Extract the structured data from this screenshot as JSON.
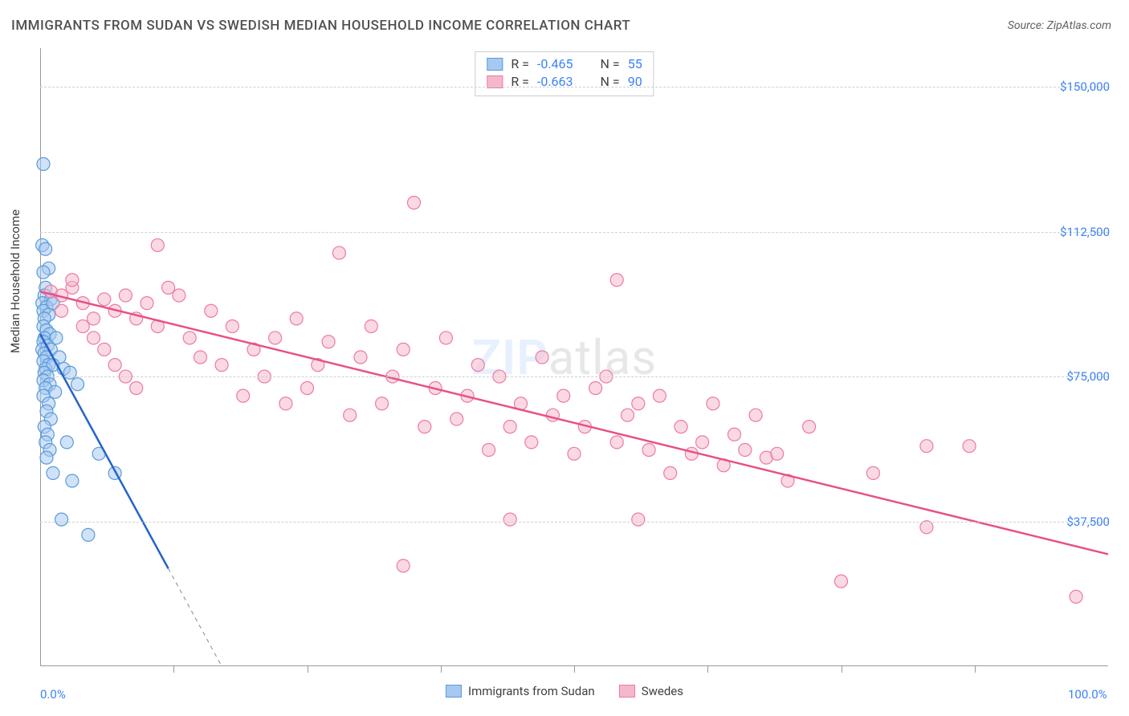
{
  "title": "IMMIGRANTS FROM SUDAN VS SWEDISH MEDIAN HOUSEHOLD INCOME CORRELATION CHART",
  "source_label": "Source:",
  "source_value": "ZipAtlas.com",
  "watermark_zip": "ZIP",
  "watermark_atlas": "atlas",
  "y_axis_label": "Median Household Income",
  "chart": {
    "type": "scatter",
    "background_color": "#ffffff",
    "grid_color": "#d0d0d0",
    "axis_color": "#999999",
    "xlim": [
      0,
      100
    ],
    "ylim": [
      0,
      160000
    ],
    "x_tick_labels": {
      "0": "0.0%",
      "100": "100.0%"
    },
    "x_minor_ticks": [
      12.5,
      25,
      37.5,
      50,
      62.5,
      75,
      87.5
    ],
    "y_ticks": [
      37500,
      75000,
      112500,
      150000
    ],
    "y_tick_labels": {
      "37500": "$37,500",
      "75000": "$75,000",
      "112500": "$112,500",
      "150000": "$150,000"
    },
    "tick_label_color": "#3b82f6",
    "tick_label_fontsize": 15,
    "marker_radius": 8,
    "marker_fill_opacity": 0.18,
    "marker_stroke_width": 1.2,
    "line_width": 2.5,
    "series": [
      {
        "name": "Immigrants from Sudan",
        "color_fill": "#a7c8f2",
        "color_stroke": "#5a9bd8",
        "line_color": "#2563cb",
        "R": "-0.465",
        "N": "55",
        "trend": {
          "x1": 0,
          "y1": 86000,
          "x2": 17,
          "y2": 0,
          "dash_after_x": 12
        },
        "points": [
          [
            0.3,
            130000
          ],
          [
            0.2,
            109000
          ],
          [
            0.5,
            108000
          ],
          [
            0.8,
            103000
          ],
          [
            0.3,
            102000
          ],
          [
            0.5,
            98000
          ],
          [
            0.4,
            96000
          ],
          [
            1.0,
            95000
          ],
          [
            0.2,
            94000
          ],
          [
            0.6,
            93000
          ],
          [
            0.3,
            92000
          ],
          [
            0.8,
            91000
          ],
          [
            0.4,
            90000
          ],
          [
            1.2,
            94000
          ],
          [
            0.3,
            88000
          ],
          [
            0.6,
            87000
          ],
          [
            0.9,
            86000
          ],
          [
            0.4,
            85000
          ],
          [
            1.5,
            85000
          ],
          [
            0.3,
            84000
          ],
          [
            0.7,
            83000
          ],
          [
            0.2,
            82000
          ],
          [
            1.0,
            82000
          ],
          [
            0.4,
            81000
          ],
          [
            0.6,
            80000
          ],
          [
            1.8,
            80000
          ],
          [
            0.3,
            79000
          ],
          [
            0.8,
            78000
          ],
          [
            0.5,
            77000
          ],
          [
            1.2,
            78000
          ],
          [
            2.2,
            77000
          ],
          [
            0.4,
            76000
          ],
          [
            0.7,
            75000
          ],
          [
            2.8,
            76000
          ],
          [
            0.3,
            74000
          ],
          [
            0.9,
            73000
          ],
          [
            3.5,
            73000
          ],
          [
            0.5,
            72000
          ],
          [
            1.4,
            71000
          ],
          [
            0.3,
            70000
          ],
          [
            0.8,
            68000
          ],
          [
            0.6,
            66000
          ],
          [
            1.0,
            64000
          ],
          [
            0.4,
            62000
          ],
          [
            0.7,
            60000
          ],
          [
            0.5,
            58000
          ],
          [
            0.9,
            56000
          ],
          [
            2.5,
            58000
          ],
          [
            0.6,
            54000
          ],
          [
            1.2,
            50000
          ],
          [
            3.0,
            48000
          ],
          [
            5.5,
            55000
          ],
          [
            7.0,
            50000
          ],
          [
            4.5,
            34000
          ],
          [
            2.0,
            38000
          ]
        ]
      },
      {
        "name": "Swedes",
        "color_fill": "#f5b8cb",
        "color_stroke": "#ec7ba3",
        "line_color": "#e84f87",
        "R": "-0.663",
        "N": "90",
        "trend": {
          "x1": 0,
          "y1": 97000,
          "x2": 100,
          "y2": 29000
        },
        "points": [
          [
            1,
            97000
          ],
          [
            2,
            96000
          ],
          [
            3,
            98000
          ],
          [
            2,
            92000
          ],
          [
            4,
            94000
          ],
          [
            5,
            90000
          ],
          [
            3,
            100000
          ],
          [
            6,
            95000
          ],
          [
            4,
            88000
          ],
          [
            7,
            92000
          ],
          [
            5,
            85000
          ],
          [
            8,
            96000
          ],
          [
            11,
            109000
          ],
          [
            6,
            82000
          ],
          [
            9,
            90000
          ],
          [
            7,
            78000
          ],
          [
            10,
            94000
          ],
          [
            8,
            75000
          ],
          [
            11,
            88000
          ],
          [
            9,
            72000
          ],
          [
            12,
            98000
          ],
          [
            13,
            96000
          ],
          [
            14,
            85000
          ],
          [
            15,
            80000
          ],
          [
            16,
            92000
          ],
          [
            17,
            78000
          ],
          [
            18,
            88000
          ],
          [
            19,
            70000
          ],
          [
            20,
            82000
          ],
          [
            21,
            75000
          ],
          [
            22,
            85000
          ],
          [
            23,
            68000
          ],
          [
            24,
            90000
          ],
          [
            25,
            72000
          ],
          [
            26,
            78000
          ],
          [
            27,
            84000
          ],
          [
            28,
            107000
          ],
          [
            29,
            65000
          ],
          [
            30,
            80000
          ],
          [
            31,
            88000
          ],
          [
            32,
            68000
          ],
          [
            33,
            75000
          ],
          [
            34,
            82000
          ],
          [
            35,
            120000
          ],
          [
            36,
            62000
          ],
          [
            37,
            72000
          ],
          [
            38,
            85000
          ],
          [
            39,
            64000
          ],
          [
            40,
            70000
          ],
          [
            41,
            78000
          ],
          [
            42,
            56000
          ],
          [
            34,
            26000
          ],
          [
            43,
            75000
          ],
          [
            44,
            62000
          ],
          [
            45,
            68000
          ],
          [
            46,
            58000
          ],
          [
            47,
            80000
          ],
          [
            48,
            65000
          ],
          [
            49,
            70000
          ],
          [
            44,
            38000
          ],
          [
            50,
            55000
          ],
          [
            51,
            62000
          ],
          [
            52,
            72000
          ],
          [
            53,
            75000
          ],
          [
            54,
            58000
          ],
          [
            55,
            65000
          ],
          [
            56,
            68000
          ],
          [
            57,
            56000
          ],
          [
            58,
            70000
          ],
          [
            59,
            50000
          ],
          [
            60,
            62000
          ],
          [
            61,
            55000
          ],
          [
            62,
            58000
          ],
          [
            63,
            68000
          ],
          [
            56,
            38000
          ],
          [
            64,
            52000
          ],
          [
            65,
            60000
          ],
          [
            66,
            56000
          ],
          [
            67,
            65000
          ],
          [
            68,
            54000
          ],
          [
            69,
            55000
          ],
          [
            54,
            100000
          ],
          [
            83,
            57000
          ],
          [
            83,
            36000
          ],
          [
            87,
            57000
          ],
          [
            75,
            22000
          ],
          [
            97,
            18000
          ],
          [
            78,
            50000
          ],
          [
            70,
            48000
          ],
          [
            72,
            62000
          ]
        ]
      }
    ]
  },
  "legend_top": {
    "R_label": "R =",
    "N_label": "N ="
  },
  "legend_bottom_labels": [
    "Immigrants from Sudan",
    "Swedes"
  ]
}
